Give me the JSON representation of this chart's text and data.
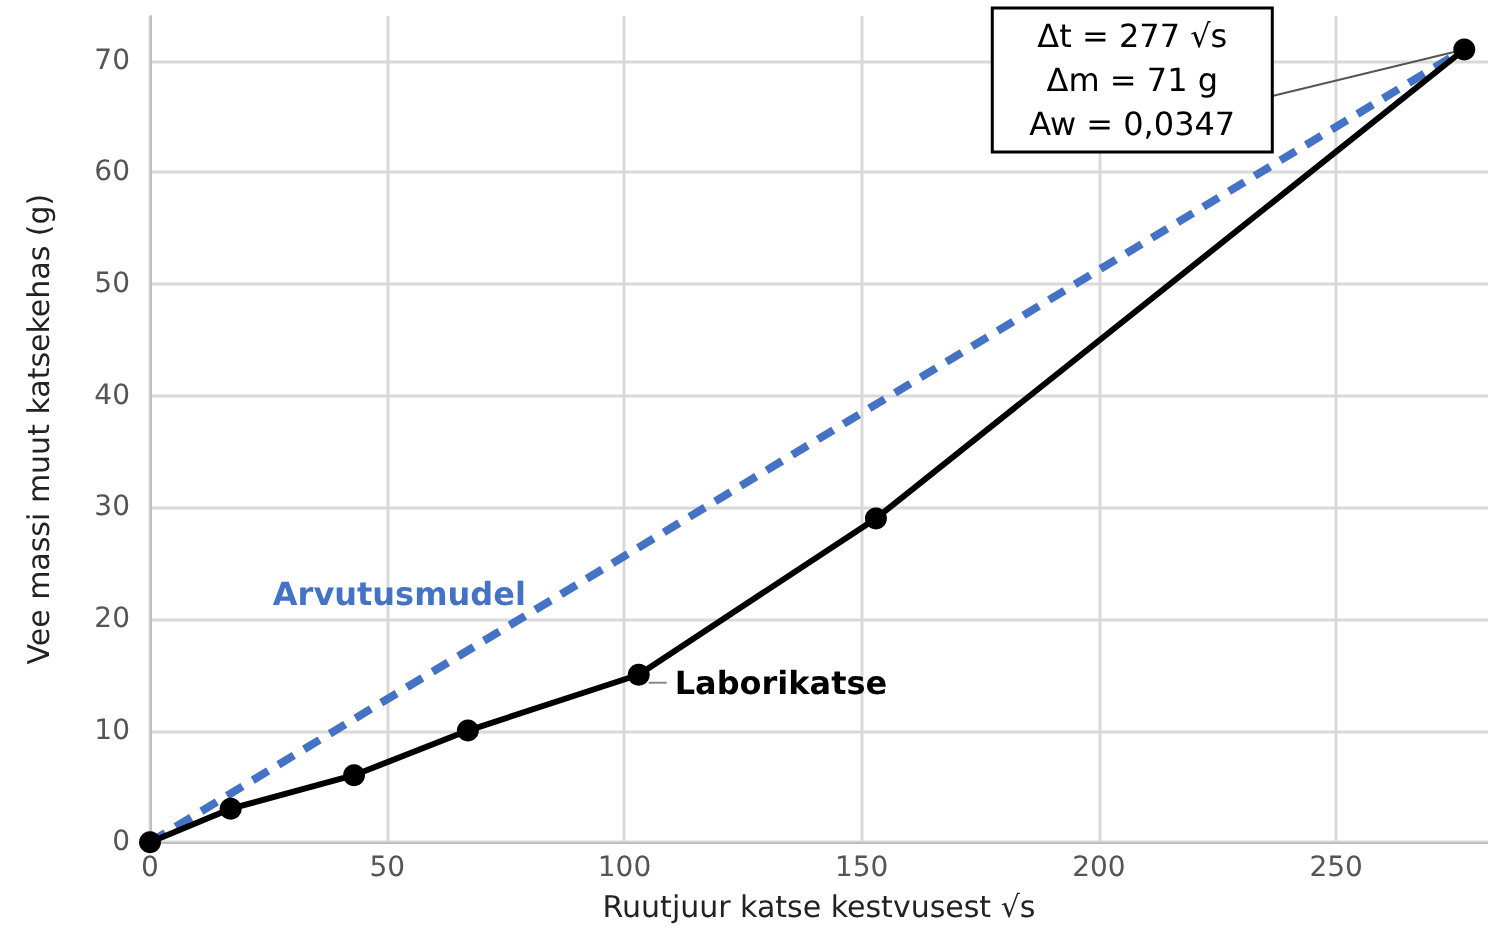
{
  "chart_data": {
    "type": "line",
    "xlabel": "Ruutjuur katse kestvusest √s",
    "ylabel": "Vee massi muut katsekehas (g)",
    "xlim": [
      0,
      282
    ],
    "xticks": [
      0,
      50,
      100,
      150,
      200,
      250
    ],
    "ylim": [
      0,
      74
    ],
    "yticks": [
      0,
      10,
      20,
      30,
      40,
      50,
      60,
      70
    ],
    "grid": true,
    "legend": false,
    "series": [
      {
        "name": "Arvutusmudel",
        "color": "#4472c4",
        "x": [
          0,
          277
        ],
        "values": [
          0,
          71
        ],
        "line_style": "dashed",
        "marker": "none"
      },
      {
        "name": "Laborikatse",
        "color": "#000000",
        "x": [
          0,
          17,
          43,
          67,
          103,
          153,
          277
        ],
        "values": [
          0,
          3,
          6,
          10,
          15,
          29,
          71
        ],
        "line_style": "solid",
        "marker": "circle"
      }
    ],
    "annotations": [
      {
        "text": "Δt = 277 √s\nΔm = 71 g\nAw = 0,0347",
        "x": 277,
        "y": 71
      }
    ]
  }
}
